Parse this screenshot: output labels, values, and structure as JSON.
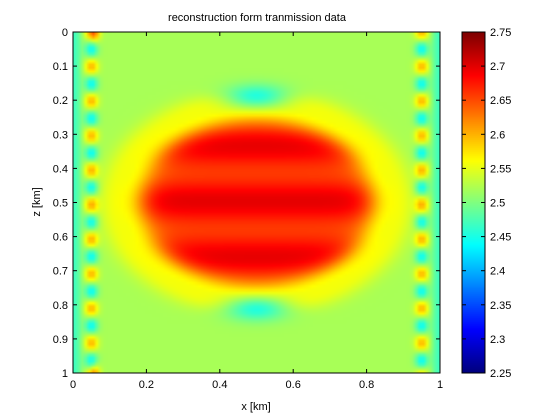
{
  "chart_data": {
    "type": "heatmap",
    "title": "reconstruction form tranmission data",
    "xlabel": "x [km]",
    "ylabel": "z [km]",
    "xlim": [
      0,
      1
    ],
    "ylim": [
      0,
      1
    ],
    "y_direction": "reversed",
    "xticks": [
      0,
      0.2,
      0.4,
      0.6,
      0.8,
      1
    ],
    "xtick_labels": [
      "0",
      "0.2",
      "0.4",
      "0.6",
      "0.8",
      "1"
    ],
    "yticks": [
      0,
      0.1,
      0.2,
      0.3,
      0.4,
      0.5,
      0.6,
      0.7,
      0.8,
      0.9,
      1
    ],
    "ytick_labels": [
      "0",
      "0.1",
      "0.2",
      "0.3",
      "0.4",
      "0.5",
      "0.6",
      "0.7",
      "0.8",
      "0.9",
      "1"
    ],
    "colormap": "jet",
    "clim": [
      2.25,
      2.75
    ],
    "colorbar_ticks": [
      2.25,
      2.3,
      2.35,
      2.4,
      2.45,
      2.5,
      2.55,
      2.6,
      2.65,
      2.7,
      2.75
    ],
    "colorbar_tick_labels": [
      "2.25",
      "2.3",
      "2.35",
      "2.4",
      "2.45",
      "2.5",
      "2.55",
      "2.6",
      "2.65",
      "2.7",
      "2.75"
    ],
    "colorbar_location": "right",
    "grid": false,
    "field": {
      "background": 2.52,
      "anomaly": {
        "shape": "ellipse",
        "center_x": 0.5,
        "center_z": 0.5,
        "half_width_x": 0.32,
        "half_height_z": 0.25,
        "value": 2.68
      },
      "low_zones": [
        {
          "center_x": 0.5,
          "center_z": 0.19,
          "value": 2.42
        },
        {
          "center_x": 0.5,
          "center_z": 0.81,
          "value": 2.42
        }
      ],
      "edge_artifacts": "alternating high/low ripples near x = 0.05 and x = 0.95"
    }
  },
  "colors": {
    "axes": "#000000",
    "background": "#ffffff"
  }
}
